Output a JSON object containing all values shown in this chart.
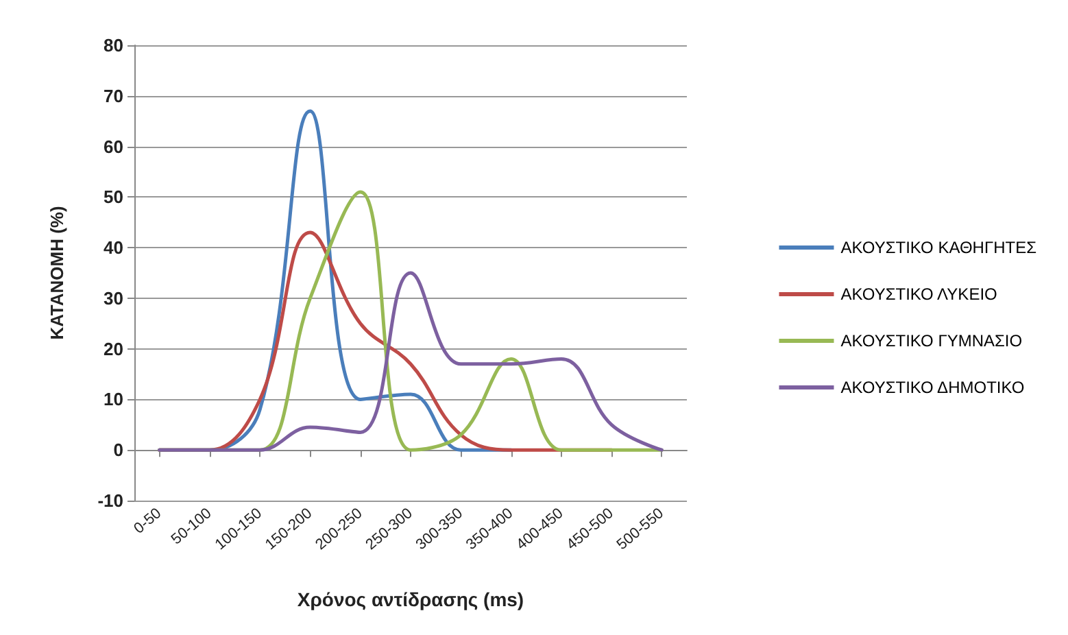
{
  "chart_data": {
    "type": "line",
    "xlabel": "Χρόνος αντίδρασης (ms)",
    "ylabel": "ΚΑΤΑΝΟΜΗ (%)",
    "categories": [
      "0-50",
      "50-100",
      "100-150",
      "150-200",
      "200-250",
      "250-300",
      "300-350",
      "350-400",
      "400-450",
      "450-500",
      "500-550"
    ],
    "series": [
      {
        "name": "ΑΚΟΥΣΤΙΚΟ ΚΑΘΗΓΗΤΕΣ",
        "color": "#4a7ebb",
        "values": [
          0,
          0,
          8,
          67,
          10,
          11,
          0,
          0,
          null,
          null,
          null
        ]
      },
      {
        "name": "ΑΚΟΥΣΤΙΚΟ ΛΥΚΕΙΟ",
        "color": "#be4b48",
        "values": [
          0,
          0,
          10,
          43,
          25,
          17,
          3,
          0,
          0,
          0,
          null
        ]
      },
      {
        "name": "ΑΚΟΥΣΤΙΚΟ ΓΥΜΝΑΣΙΟ",
        "color": "#98b954",
        "values": [
          0,
          0,
          0,
          30,
          51,
          0,
          3,
          18,
          0,
          0,
          0
        ]
      },
      {
        "name": "ΑΚΟΥΣΤΙΚΟ ΔΗΜΟΤΙΚΟ",
        "color": "#7d60a0",
        "values": [
          0,
          0,
          0,
          4.5,
          3.5,
          35,
          17,
          17,
          18,
          5,
          0
        ]
      }
    ],
    "ylim": [
      -10,
      80
    ],
    "yticks": [
      -10,
      0,
      10,
      20,
      30,
      40,
      50,
      60,
      70,
      80
    ],
    "grid": "y",
    "legend": "right",
    "marker": "none",
    "line_style": "solid"
  }
}
